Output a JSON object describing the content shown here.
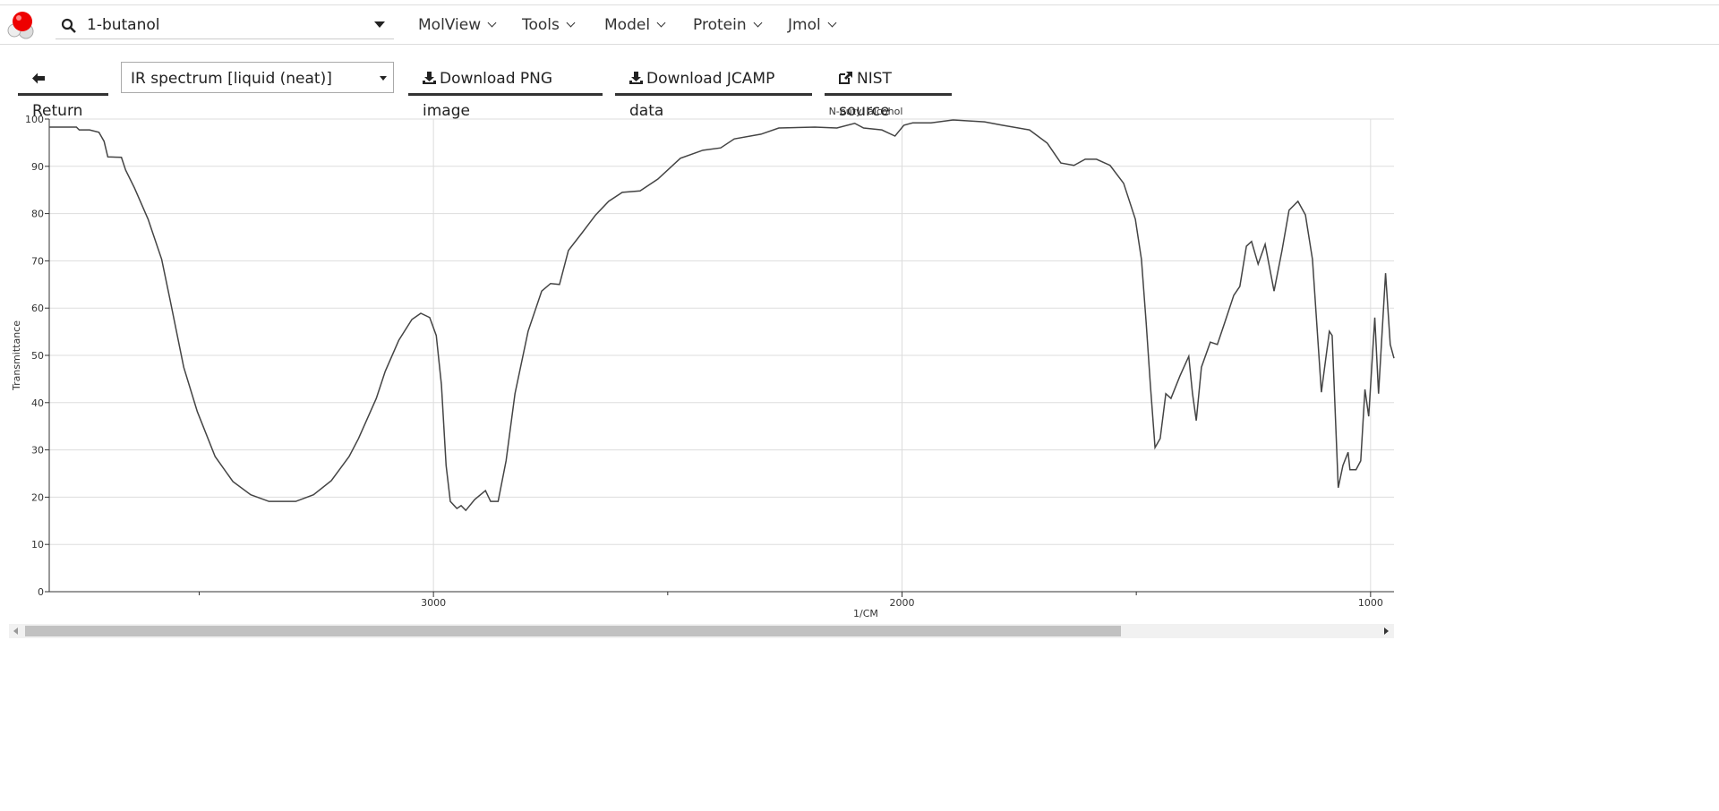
{
  "toolbar": {
    "search": "1-butanol",
    "menus": [
      "MolView",
      "Tools",
      "Model",
      "Protein",
      "Jmol"
    ]
  },
  "actions": {
    "return": "Return",
    "spectrum": "IR spectrum [liquid (neat)]",
    "download_png": "Download PNG image",
    "download_jcamp": "Download JCAMP data",
    "nist": "NIST source"
  },
  "chart_data": {
    "type": "line",
    "title": "N-butyl alcohol",
    "x_label": "1/CM",
    "y_label": "Transmittance",
    "color": "#444444",
    "grid": true,
    "x": [
      3820,
      3762,
      3756,
      3734,
      3714,
      3703,
      3695,
      3666,
      3657,
      3638,
      3609,
      3580,
      3562,
      3533,
      3504,
      3466,
      3428,
      3390,
      3351,
      3294,
      3256,
      3218,
      3180,
      3160,
      3122,
      3103,
      3074,
      3046,
      3027,
      3008,
      2994,
      2983,
      2973,
      2964,
      2950,
      2941,
      2931,
      2912,
      2889,
      2878,
      2862,
      2845,
      2826,
      2798,
      2769,
      2750,
      2731,
      2712,
      2683,
      2654,
      2626,
      2597,
      2559,
      2521,
      2473,
      2425,
      2387,
      2358,
      2301,
      2263,
      2186,
      2139,
      2101,
      2082,
      2043,
      2015,
      1996,
      1977,
      1938,
      1891,
      1824,
      1786,
      1728,
      1690,
      1661,
      1633,
      1609,
      1585,
      1556,
      1527,
      1502,
      1489,
      1479,
      1470,
      1460,
      1449,
      1437,
      1426,
      1407,
      1388,
      1380,
      1372,
      1361,
      1342,
      1327,
      1311,
      1292,
      1279,
      1265,
      1254,
      1240,
      1225,
      1206,
      1189,
      1174,
      1155,
      1139,
      1124,
      1105,
      1088,
      1082,
      1069,
      1059,
      1048,
      1044,
      1031,
      1021,
      1012,
      1004,
      991,
      983,
      968,
      958,
      950
    ],
    "values": [
      98.3,
      98.3,
      97.7,
      97.7,
      97.2,
      95.3,
      92,
      91.9,
      89.2,
      85.4,
      78.8,
      70.3,
      61.7,
      47.5,
      38.1,
      28.6,
      23.3,
      20.5,
      19.1,
      19.1,
      20.5,
      23.5,
      28.6,
      32.4,
      40.9,
      46.6,
      53.2,
      57.6,
      58.9,
      58,
      54.2,
      43.8,
      26.7,
      19.1,
      17.6,
      18.2,
      17.2,
      19.5,
      21.4,
      19.1,
      19.1,
      27.7,
      41.9,
      55.1,
      63.6,
      65.2,
      65,
      72.2,
      75.9,
      79.7,
      82.6,
      84.5,
      84.8,
      87.3,
      91.7,
      93.4,
      93.9,
      95.8,
      96.8,
      98.1,
      98.3,
      98.1,
      99.1,
      98.1,
      97.7,
      96.4,
      98.7,
      99.2,
      99.2,
      99.8,
      99.4,
      98.7,
      97.7,
      94.9,
      90.7,
      90.2,
      91.5,
      91.5,
      90.2,
      86.4,
      78.8,
      70.3,
      57,
      43.8,
      30.5,
      32.4,
      41.9,
      40.9,
      45.6,
      49.8,
      41.9,
      36.2,
      47.5,
      52.8,
      52.3,
      57,
      62.7,
      64.6,
      73.1,
      74.1,
      69.3,
      73.5,
      63.6,
      72.2,
      80.7,
      82.6,
      79.7,
      70.3,
      42.2,
      55.1,
      54.2,
      22,
      26.7,
      29.5,
      25.8,
      25.8,
      27.7,
      42.8,
      37.1,
      58,
      41.9,
      67.4,
      52.3,
      49.4
    ],
    "xlim": [
      3820,
      950
    ],
    "xticks": [
      3000,
      2000,
      1000
    ],
    "xminorticks": [
      3500,
      2500,
      1500
    ],
    "ylim": [
      0,
      100
    ],
    "yticks": [
      0,
      10,
      20,
      30,
      40,
      50,
      60,
      70,
      80,
      90,
      100
    ]
  }
}
